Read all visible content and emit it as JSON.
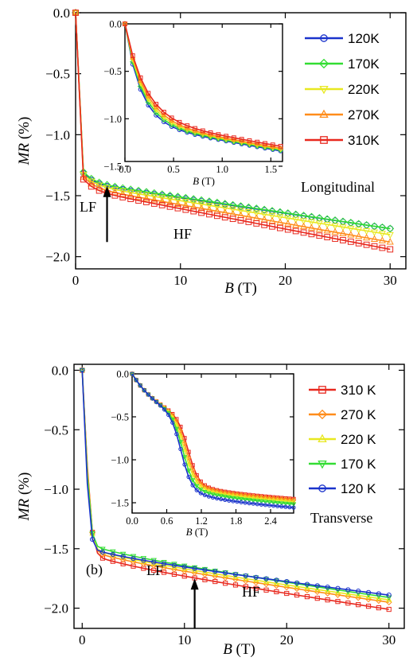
{
  "chart_data": [
    {
      "type": "line",
      "panel": "top",
      "xlabel_italic": "B",
      "xlabel_unit": "(T)",
      "ylabel_italic": "MR",
      "ylabel_unit": "(%)",
      "xlim": [
        0,
        31.5
      ],
      "ylim": [
        -2.1,
        0.0
      ],
      "xticks": [
        0,
        10,
        20,
        30
      ],
      "yticks": [
        0.0,
        -0.5,
        -1.0,
        -1.5,
        -2.0
      ],
      "xtick_labels": [
        "0",
        "10",
        "20",
        "30"
      ],
      "ytick_labels": [
        "0.0",
        "−0.5",
        "−1.0",
        "−1.5",
        "−2.0"
      ],
      "annotations": {
        "lf": "LF",
        "hf": "HF",
        "mode": "Longitudinal"
      },
      "arrow": {
        "x": 3.0,
        "y_from": -1.88,
        "y_to": -1.42
      },
      "legend_position": "top-right",
      "series": [
        {
          "name": "120K",
          "color": "#1a33cc",
          "marker": "circle",
          "plateau": -1.3,
          "end": -1.77
        },
        {
          "name": "170K",
          "color": "#33dd33",
          "marker": "diamond",
          "plateau": -1.29,
          "end": -1.77
        },
        {
          "name": "220K",
          "color": "#e8e820",
          "marker": "triangle-down",
          "plateau": -1.31,
          "end": -1.82
        },
        {
          "name": "270K",
          "color": "#ff8c1a",
          "marker": "triangle-up",
          "plateau": -1.33,
          "end": -1.88
        },
        {
          "name": "310K",
          "color": "#e8281e",
          "marker": "square",
          "plateau": -1.35,
          "end": -1.94
        }
      ],
      "inset": {
        "xlabel_italic": "B",
        "xlabel_unit": "(T)",
        "xlim": [
          0,
          1.62
        ],
        "ylim": [
          -1.45,
          0.0
        ],
        "xticks": [
          0.0,
          0.5,
          1.0,
          1.5
        ],
        "yticks": [
          0.0,
          -0.5,
          -1.0,
          -1.5
        ],
        "xtick_labels": [
          "0.0",
          "0.5",
          "1.0",
          "1.5"
        ],
        "ytick_labels": [
          "0.0",
          "−0.5",
          "−1.0",
          "−1.5"
        ],
        "end_values": [
          -1.34,
          -1.33,
          -1.32,
          -1.31,
          -1.29
        ]
      }
    },
    {
      "type": "line",
      "panel": "bottom",
      "xlabel_italic": "B",
      "xlabel_unit": "(T)",
      "ylabel_italic": "MR",
      "ylabel_unit": "(%)",
      "xlim": [
        -0.8,
        31.5
      ],
      "ylim": [
        -2.17,
        0.05
      ],
      "xticks": [
        0,
        10,
        20,
        30
      ],
      "yticks": [
        0.0,
        -0.5,
        -1.0,
        -1.5,
        -2.0
      ],
      "xtick_labels": [
        "0",
        "10",
        "20",
        "30"
      ],
      "ytick_labels": [
        "0.0",
        "−0.5",
        "−1.0",
        "−1.5",
        "−2.0"
      ],
      "annotations": {
        "panel": "(b)",
        "lf": "LF",
        "hf": "HF",
        "mode": "Transverse"
      },
      "arrow": {
        "x": 11.0,
        "y_from": -2.17,
        "y_to": -1.75
      },
      "legend_position": "top-right",
      "series": [
        {
          "name": "310 K",
          "color": "#e8281e",
          "marker": "square",
          "knee": -1.55,
          "end": -2.01
        },
        {
          "name": "270 K",
          "color": "#ff8c1a",
          "marker": "diamond",
          "knee": -1.52,
          "end": -1.95
        },
        {
          "name": "220 K",
          "color": "#e8e820",
          "marker": "triangle-up",
          "knee": -1.5,
          "end": -1.93
        },
        {
          "name": "170 K",
          "color": "#33dd33",
          "marker": "triangle-down",
          "knee": -1.47,
          "end": -1.91
        },
        {
          "name": "120 K",
          "color": "#1a33cc",
          "marker": "circle",
          "knee": -1.5,
          "end": -1.89
        }
      ],
      "inset": {
        "xlabel_italic": "B",
        "xlabel_unit": "(T)",
        "xlim": [
          0.0,
          2.8
        ],
        "ylim": [
          -1.62,
          0.0
        ],
        "xticks": [
          0.0,
          0.6,
          1.2,
          1.8,
          2.4
        ],
        "yticks": [
          0.0,
          -0.5,
          -1.0,
          -1.5
        ],
        "xtick_labels": [
          "0.0",
          "0.6",
          "1.2",
          "1.8",
          "2.4"
        ],
        "ytick_labels": [
          "0.0",
          "−0.5",
          "−1.0",
          "−1.5"
        ],
        "end_values": [
          -1.46,
          -1.47,
          -1.49,
          -1.52,
          -1.56
        ]
      }
    }
  ]
}
